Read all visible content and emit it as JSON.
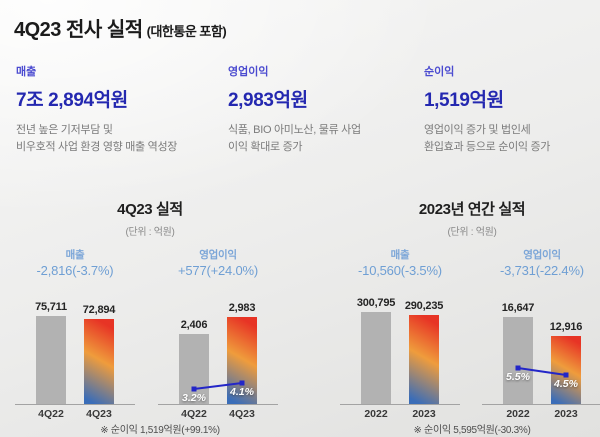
{
  "title": {
    "main": "4Q23 전사 실적",
    "suffix": "(대한통운 포함)"
  },
  "kpis": [
    {
      "label": "매출",
      "value": "7조 2,894억원",
      "desc_line1": "전년 높은 기저부담 및",
      "desc_line2": "비우호적 사업 환경 영향 매출 역성장"
    },
    {
      "label": "영업이익",
      "value": "2,983억원",
      "desc_line1": "식품, BIO 아미노산, 물류 사업",
      "desc_line2": "이익 확대로 증가"
    },
    {
      "label": "순이익",
      "value": "1,519억원",
      "desc_line1": "영업이익 증가 및 법인세",
      "desc_line2": "환입효과 등으로 순이익 증가"
    }
  ],
  "sections": [
    {
      "title": "4Q23 실적",
      "unit": "(단위 : 억원)",
      "footnote": "※ 순이익 1,519억원(+99.1%)"
    },
    {
      "title": "2023년 연간 실적",
      "unit": "(단위 : 억원)",
      "footnote": "※ 순이익 5,595억원(-30.3%)"
    }
  ],
  "chart_data": [
    {
      "type": "bar",
      "section": "4Q23 실적",
      "metric": "매출",
      "delta_label": "-2,816(-3.7%)",
      "unit": "억원",
      "categories": [
        "4Q22",
        "4Q23"
      ],
      "values": [
        75711,
        72894
      ],
      "value_labels": [
        "75,711",
        "72,894"
      ]
    },
    {
      "type": "bar+line",
      "section": "4Q23 실적",
      "metric": "영업이익",
      "delta_label": "+577(+24.0%)",
      "unit": "억원",
      "categories": [
        "4Q22",
        "4Q23"
      ],
      "values": [
        2406,
        2983
      ],
      "value_labels": [
        "2,406",
        "2,983"
      ],
      "margin_values": [
        3.2,
        4.1
      ],
      "margin_labels": [
        "3.2%",
        "4.1%"
      ]
    },
    {
      "type": "bar",
      "section": "2023년 연간 실적",
      "metric": "매출",
      "delta_label": "-10,560(-3.5%)",
      "unit": "억원",
      "categories": [
        "2022",
        "2023"
      ],
      "values": [
        300795,
        290235
      ],
      "value_labels": [
        "300,795",
        "290,235"
      ]
    },
    {
      "type": "bar+line",
      "section": "2023년 연간 실적",
      "metric": "영업이익",
      "delta_label": "-3,731(-22.4%)",
      "unit": "억원",
      "categories": [
        "2022",
        "2023"
      ],
      "values": [
        16647,
        12916
      ],
      "value_labels": [
        "16,647",
        "12,916"
      ],
      "margin_values": [
        5.5,
        4.5
      ],
      "margin_labels": [
        "5.5%",
        "4.5%"
      ]
    }
  ],
  "colors": {
    "kpi_label": "#4b4bd0",
    "kpi_value": "#2428b0",
    "metric_blue": "#7ca6d8",
    "delta_blue": "#6f9fd4",
    "bar_gray": "#b2b2b2",
    "grad_top": "#e73425",
    "grad_mid": "#ef9c3c",
    "grad_bottom": "#3a6db8",
    "line_blue": "#2326c8"
  }
}
